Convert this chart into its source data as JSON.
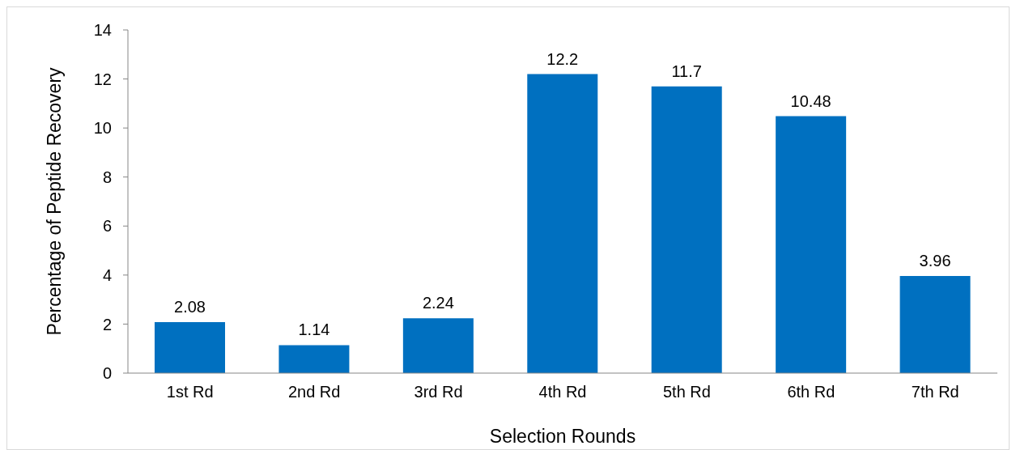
{
  "chart_data": {
    "type": "bar",
    "xlabel": "Selection Rounds",
    "ylabel": "Percentage of Peptide  Recovery",
    "categories": [
      "1st Rd",
      "2nd Rd",
      "3rd Rd",
      "4th Rd",
      "5th Rd",
      "6th Rd",
      "7th Rd"
    ],
    "values": [
      2.08,
      1.14,
      2.24,
      12.2,
      11.7,
      10.48,
      3.96
    ],
    "color": "#0070c0",
    "ylim": [
      0,
      14
    ],
    "yticks": [
      0,
      2,
      4,
      6,
      8,
      10,
      12,
      14
    ],
    "data_labels": true,
    "grid": false,
    "legend": false
  }
}
